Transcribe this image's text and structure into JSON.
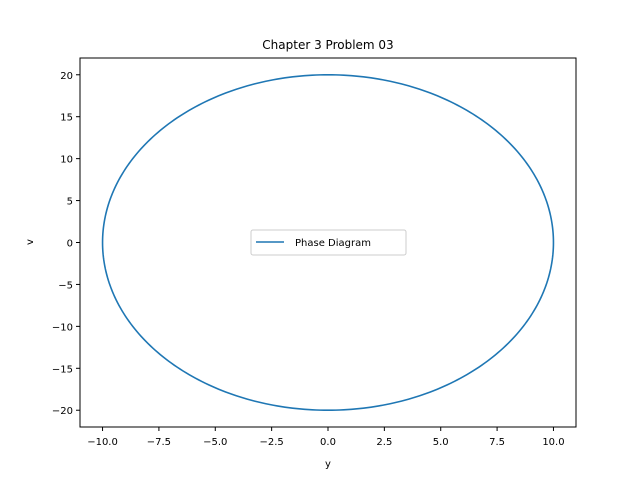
{
  "chart_data": {
    "type": "line",
    "title": "Chapter 3 Problem 03",
    "xlabel": "y",
    "ylabel": "v",
    "xlim": [
      -11.0,
      11.0
    ],
    "ylim": [
      -22.0,
      22.0
    ],
    "xticks": [
      -10.0,
      -7.5,
      -5.0,
      -2.5,
      0.0,
      2.5,
      5.0,
      7.5,
      10.0
    ],
    "xtick_labels": [
      "−10.0",
      "−7.5",
      "−5.0",
      "−2.5",
      "0.0",
      "2.5",
      "5.0",
      "7.5",
      "10.0"
    ],
    "yticks": [
      -20,
      -15,
      -10,
      -5,
      0,
      5,
      10,
      15,
      20
    ],
    "ytick_labels": [
      "−20",
      "−15",
      "−10",
      "−5",
      "0",
      "5",
      "10",
      "15",
      "20"
    ],
    "grid": false,
    "legend_position": "center",
    "series": [
      {
        "name": "Phase Diagram",
        "color": "#1f77b4",
        "shape": "ellipse",
        "center": [
          0,
          0
        ],
        "x_amplitude": 10.0,
        "y_amplitude": 20.0
      }
    ]
  }
}
